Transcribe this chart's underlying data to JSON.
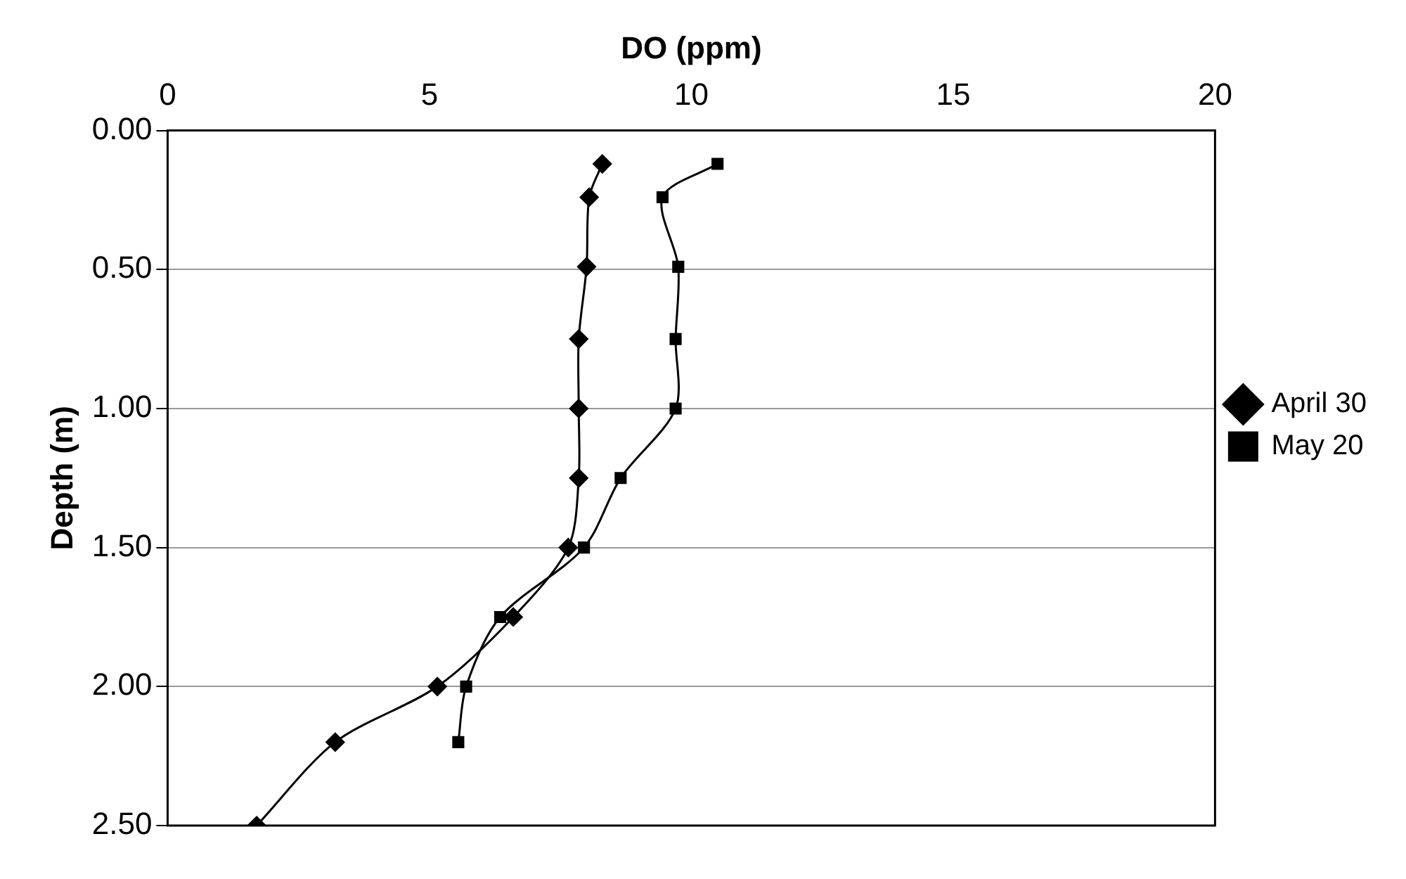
{
  "chart_data": {
    "type": "line",
    "xlabel": "DO (ppm)",
    "ylabel": "Depth (m)",
    "xlim": [
      0,
      20
    ],
    "xticks": [
      0,
      5,
      10,
      15,
      20
    ],
    "ylim": [
      2.5,
      0
    ],
    "yticks": [
      {
        "value": 0,
        "label": "0.00"
      },
      {
        "value": 0.5,
        "label": "0.50"
      },
      {
        "value": 1,
        "label": "1.00"
      },
      {
        "value": 1.5,
        "label": "1.50"
      },
      {
        "value": 2,
        "label": "2.00"
      },
      {
        "value": 2.5,
        "label": "2.50"
      }
    ],
    "grid": "y",
    "legend": "right",
    "series": [
      {
        "name": "April 30",
        "color": "#000000",
        "marker": "diamond",
        "x": [
          8.3,
          8.05,
          8.0,
          7.85,
          7.85,
          7.85,
          7.65,
          6.6,
          5.15,
          3.2,
          1.7
        ],
        "values": [
          0.12,
          0.24,
          0.49,
          0.75,
          1.0,
          1.25,
          1.5,
          1.75,
          2.0,
          2.2,
          2.5
        ]
      },
      {
        "name": "May 20",
        "color": "#000000",
        "marker": "square",
        "x": [
          10.5,
          9.45,
          9.75,
          9.7,
          9.7,
          8.65,
          7.95,
          6.35,
          5.7,
          5.55
        ],
        "values": [
          0.12,
          0.24,
          0.49,
          0.75,
          1.0,
          1.25,
          1.5,
          1.75,
          2.0,
          2.2
        ]
      }
    ]
  }
}
